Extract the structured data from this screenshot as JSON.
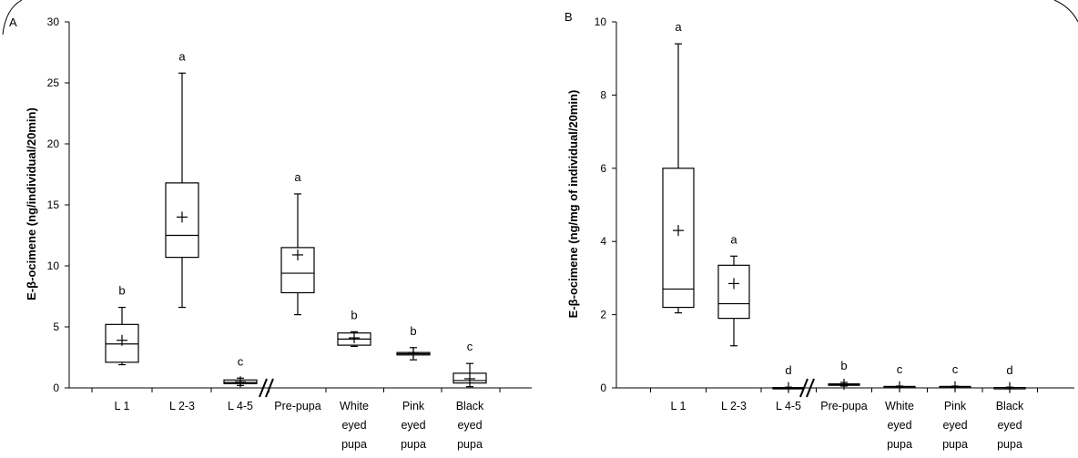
{
  "chart_data": [
    {
      "type": "box",
      "panel_label": "A",
      "ylabel": "E-β-ocimene (ng/individual/20min)",
      "ylim": [
        0,
        30
      ],
      "yticks": [
        "0",
        "5",
        "10",
        "15",
        "20",
        "25",
        "30"
      ],
      "categories": [
        {
          "label": [
            "L 1"
          ],
          "letter": "b",
          "min": 1.9,
          "q1": 2.1,
          "median": 3.6,
          "q3": 5.2,
          "max": 6.6,
          "mean": 3.9
        },
        {
          "label": [
            "L 2-3"
          ],
          "letter": "a",
          "min": 6.6,
          "q1": 10.7,
          "median": 12.5,
          "q3": 16.8,
          "max": 25.8,
          "mean": 14.0
        },
        {
          "label": [
            "L 4-5"
          ],
          "letter": "c",
          "min": 0.2,
          "q1": 0.35,
          "median": 0.45,
          "q3": 0.65,
          "max": 0.8,
          "mean": 0.5
        },
        {
          "label": [
            "Pre-pupa"
          ],
          "letter": "a",
          "min": 6.0,
          "q1": 7.8,
          "median": 9.4,
          "q3": 11.5,
          "max": 15.9,
          "mean": 10.9
        },
        {
          "label": [
            "White",
            "eyed",
            "pupa"
          ],
          "letter": "b",
          "min": 3.4,
          "q1": 3.5,
          "median": 4.0,
          "q3": 4.5,
          "max": 4.6,
          "mean": 4.1
        },
        {
          "label": [
            "Pink",
            "eyed",
            "pupa"
          ],
          "letter": "b",
          "min": 2.3,
          "q1": 2.7,
          "median": 2.8,
          "q3": 2.9,
          "max": 3.3,
          "mean": 2.9
        },
        {
          "label": [
            "Black",
            "eyed",
            "pupa"
          ],
          "letter": "c",
          "min": 0.1,
          "q1": 0.4,
          "median": 0.6,
          "q3": 1.2,
          "max": 2.0,
          "mean": 0.75
        }
      ]
    },
    {
      "type": "box",
      "panel_label": "B",
      "ylabel": "E-β-ocimene (ng/mg of individual/20min)",
      "ylim": [
        0,
        10
      ],
      "yticks": [
        "0",
        "2",
        "4",
        "6",
        "8",
        "10"
      ],
      "categories": [
        {
          "label": [
            "L 1"
          ],
          "letter": "a",
          "min": 2.05,
          "q1": 2.2,
          "median": 2.7,
          "q3": 6.0,
          "max": 9.4,
          "mean": 4.3
        },
        {
          "label": [
            "L 2-3"
          ],
          "letter": "a",
          "min": 1.15,
          "q1": 1.9,
          "median": 2.3,
          "q3": 3.35,
          "max": 3.6,
          "mean": 2.85
        },
        {
          "label": [
            "L 4-5"
          ],
          "letter": "d",
          "min": 0,
          "q1": 0,
          "median": 0,
          "q3": 0.01,
          "max": 0.02,
          "mean": 0.01
        },
        {
          "label": [
            "Pre-pupa"
          ],
          "letter": "b",
          "min": 0.05,
          "q1": 0.07,
          "median": 0.09,
          "q3": 0.11,
          "max": 0.15,
          "mean": 0.1
        },
        {
          "label": [
            "White",
            "eyed",
            "pupa"
          ],
          "letter": "c",
          "min": 0.01,
          "q1": 0.02,
          "median": 0.03,
          "q3": 0.04,
          "max": 0.05,
          "mean": 0.03
        },
        {
          "label": [
            "Pink",
            "eyed",
            "pupa"
          ],
          "letter": "c",
          "min": 0.01,
          "q1": 0.02,
          "median": 0.03,
          "q3": 0.04,
          "max": 0.05,
          "mean": 0.03
        },
        {
          "label": [
            "Black",
            "eyed",
            "pupa"
          ],
          "letter": "d",
          "min": 0,
          "q1": 0,
          "median": 0.01,
          "q3": 0.01,
          "max": 0.02,
          "mean": 0.01
        }
      ]
    }
  ]
}
